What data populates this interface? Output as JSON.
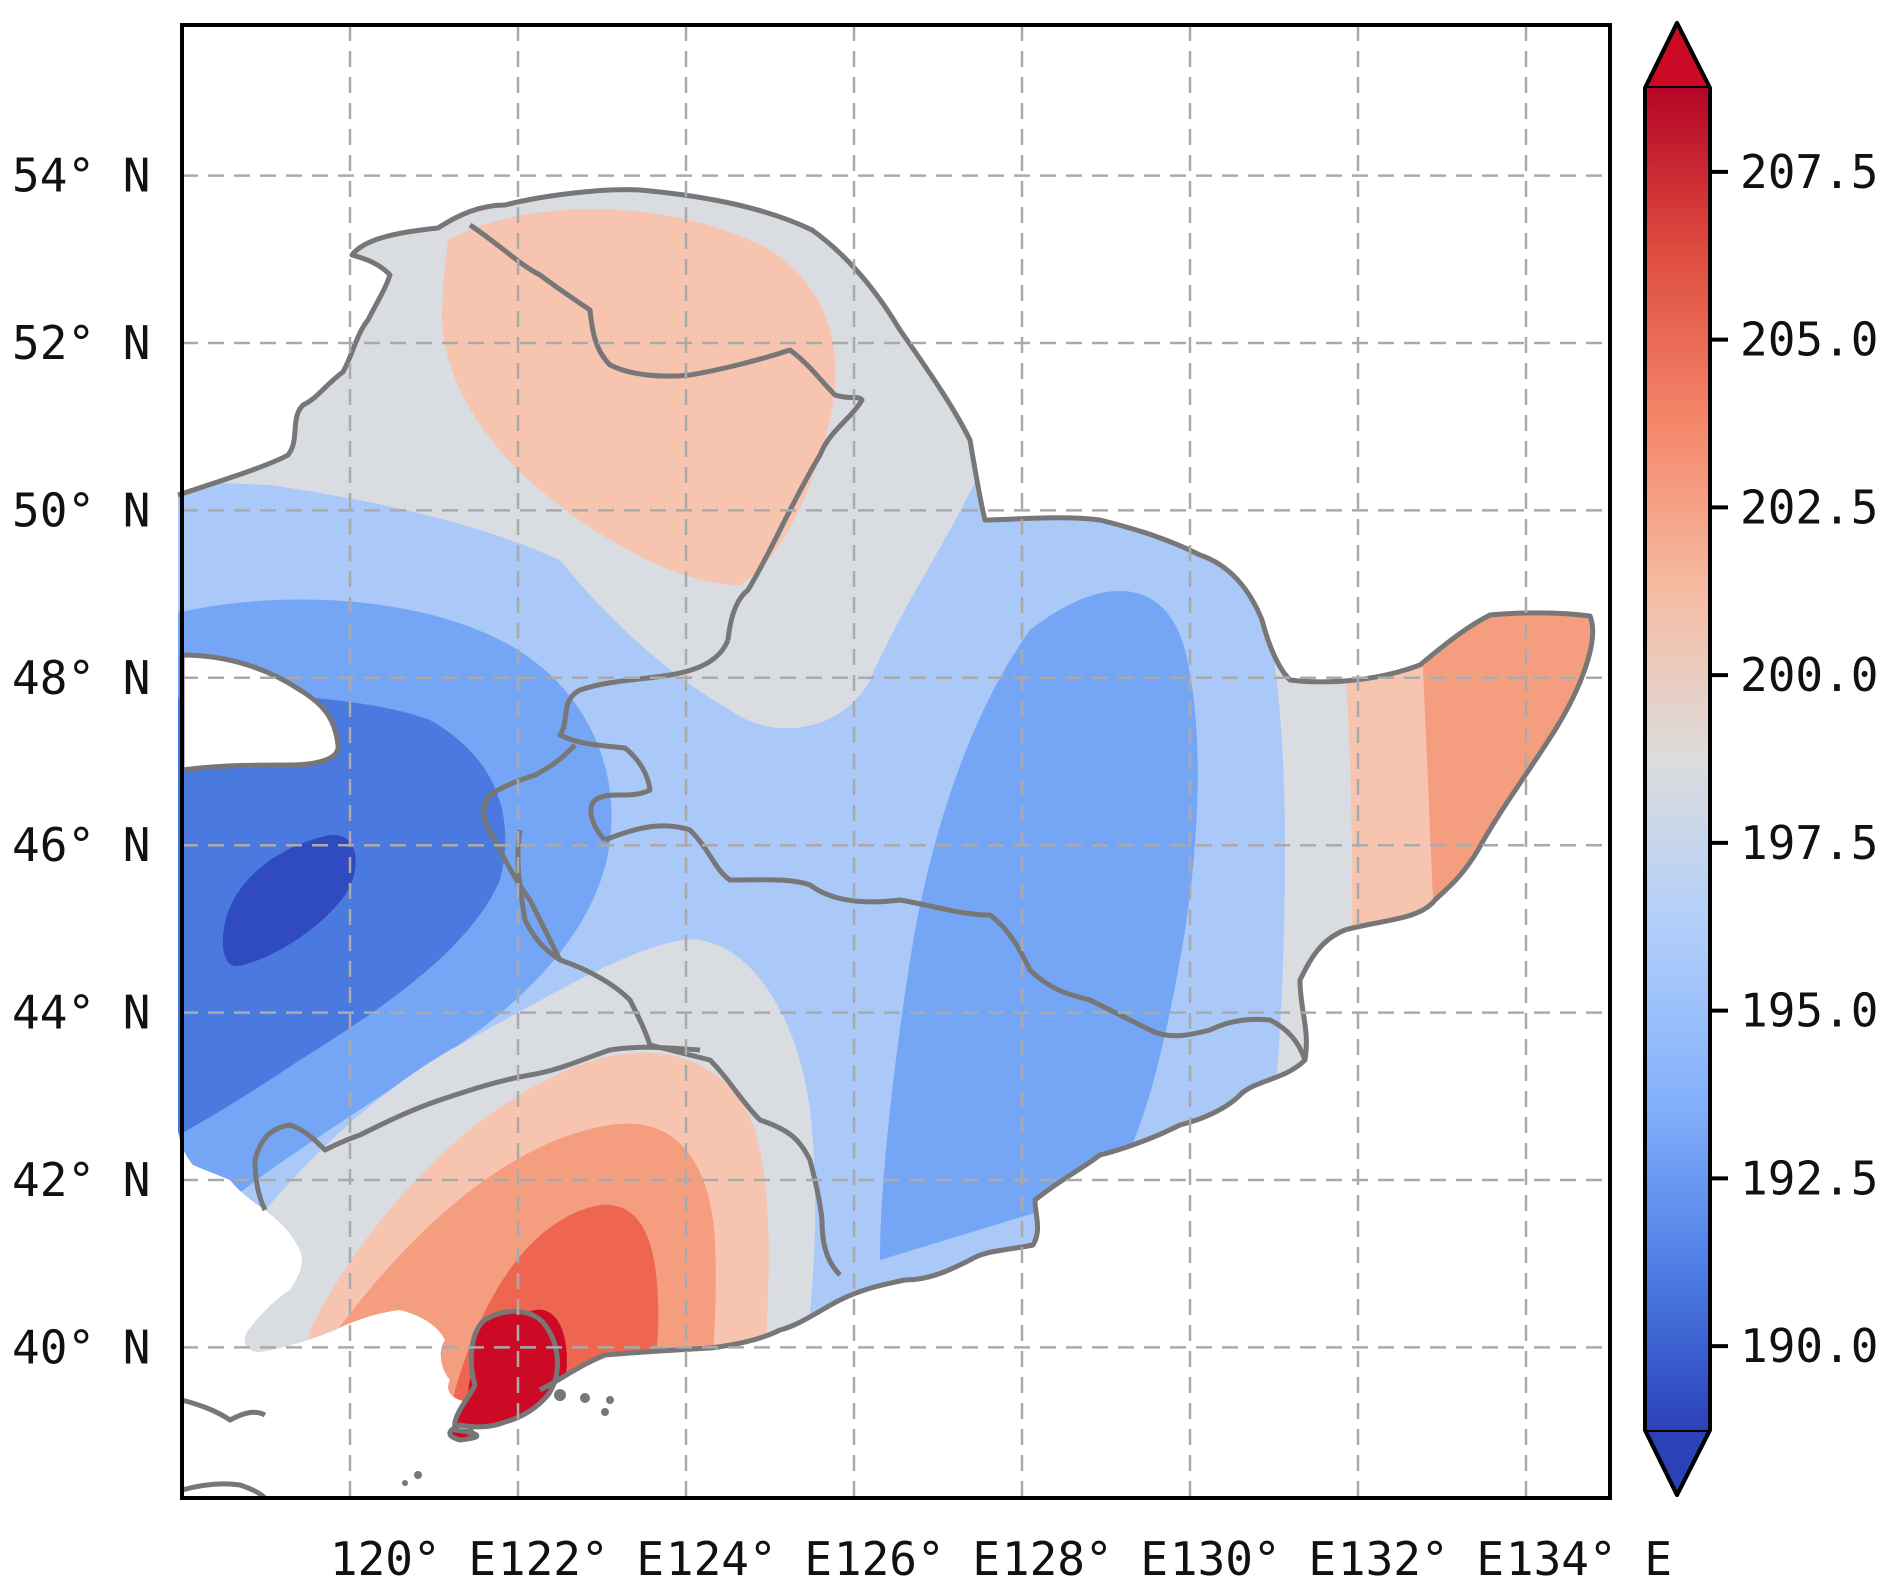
{
  "map": {
    "projection": "PlateCarree",
    "extent_lon": [
      118,
      135
    ],
    "extent_lat": [
      38.2,
      55.8
    ],
    "lon_labels": [
      {
        "lon": 120,
        "text": "120° E"
      },
      {
        "lon": 122,
        "text": "122° E"
      },
      {
        "lon": 124,
        "text": "124° E"
      },
      {
        "lon": 126,
        "text": "126° E"
      },
      {
        "lon": 128,
        "text": "128° E"
      },
      {
        "lon": 130,
        "text": "130° E"
      },
      {
        "lon": 132,
        "text": "132° E"
      },
      {
        "lon": 134,
        "text": "134° E"
      }
    ],
    "lat_labels": [
      {
        "lat": 54,
        "text": "54° N"
      },
      {
        "lat": 52,
        "text": "52° N"
      },
      {
        "lat": 50,
        "text": "50° N"
      },
      {
        "lat": 48,
        "text": "48° N"
      },
      {
        "lat": 46,
        "text": "46° N"
      },
      {
        "lat": 44,
        "text": "44° N"
      },
      {
        "lat": 42,
        "text": "42° N"
      },
      {
        "lat": 40,
        "text": "40° N"
      }
    ],
    "border_color": "#777777",
    "grid_color": "#aaaaaa"
  },
  "colorbar": {
    "range": [
      188.75,
      208.75
    ],
    "extend": "both",
    "ticks": [
      {
        "value": 190.0,
        "text": "190.0"
      },
      {
        "value": 192.5,
        "text": "192.5"
      },
      {
        "value": 195.0,
        "text": "195.0"
      },
      {
        "value": 197.5,
        "text": "197.5"
      },
      {
        "value": 200.0,
        "text": "200.0"
      },
      {
        "value": 202.5,
        "text": "202.5"
      },
      {
        "value": 205.0,
        "text": "205.0"
      },
      {
        "value": 207.5,
        "text": "207.5"
      }
    ],
    "gradient_stops": [
      "#2b41b8",
      "#4d7ee6",
      "#86b2fb",
      "#b3cffa",
      "#dcdcdc",
      "#f6bda5",
      "#f4876a",
      "#de4b3e",
      "#b40426"
    ],
    "arrow_colors": {
      "low": "#2b41b8",
      "high": "#cc0a26"
    }
  },
  "chart_data": {
    "type": "heatmap",
    "title": "",
    "variable_units": "",
    "levels": [
      {
        "range": "<190.0",
        "color": "#2f4bbf"
      },
      {
        "range": "190.0-192.5",
        "color": "#4a79df"
      },
      {
        "range": "192.5-195.0",
        "color": "#75a6f5"
      },
      {
        "range": "195.0-197.5",
        "color": "#aac8f8"
      },
      {
        "range": "197.5-200.0",
        "color": "#d9dce1"
      },
      {
        "range": "200.0-202.5",
        "color": "#f7c4b0"
      },
      {
        "range": "202.5-205.0",
        "color": "#f59e7f"
      },
      {
        "range": "205.0-207.5",
        "color": "#ee6650"
      },
      {
        "range": ">207.5",
        "color": "#cc0a26"
      }
    ],
    "features": [
      {
        "name": "northern high",
        "value": 201.0,
        "center_lon": 124.3,
        "center_lat": 51.0
      },
      {
        "name": "western low",
        "value": 189.5,
        "center_lon": 119.3,
        "center_lat": 45.0
      },
      {
        "name": "eastern trough",
        "value": 194.0,
        "center_lon": 128.8,
        "center_lat": 45.5
      },
      {
        "name": "southern high (Liaodong peninsula)",
        "value": 208.0,
        "center_lon": 122.3,
        "center_lat": 39.6
      },
      {
        "name": "northeast high",
        "value": 203.5,
        "center_lon": 133.5,
        "center_lat": 47.0
      }
    ],
    "colorbar_ticks": [
      190.0,
      192.5,
      195.0,
      197.5,
      200.0,
      202.5,
      205.0,
      207.5
    ],
    "lon_range": [
      118,
      135
    ],
    "lat_range": [
      38.2,
      55.8
    ]
  }
}
